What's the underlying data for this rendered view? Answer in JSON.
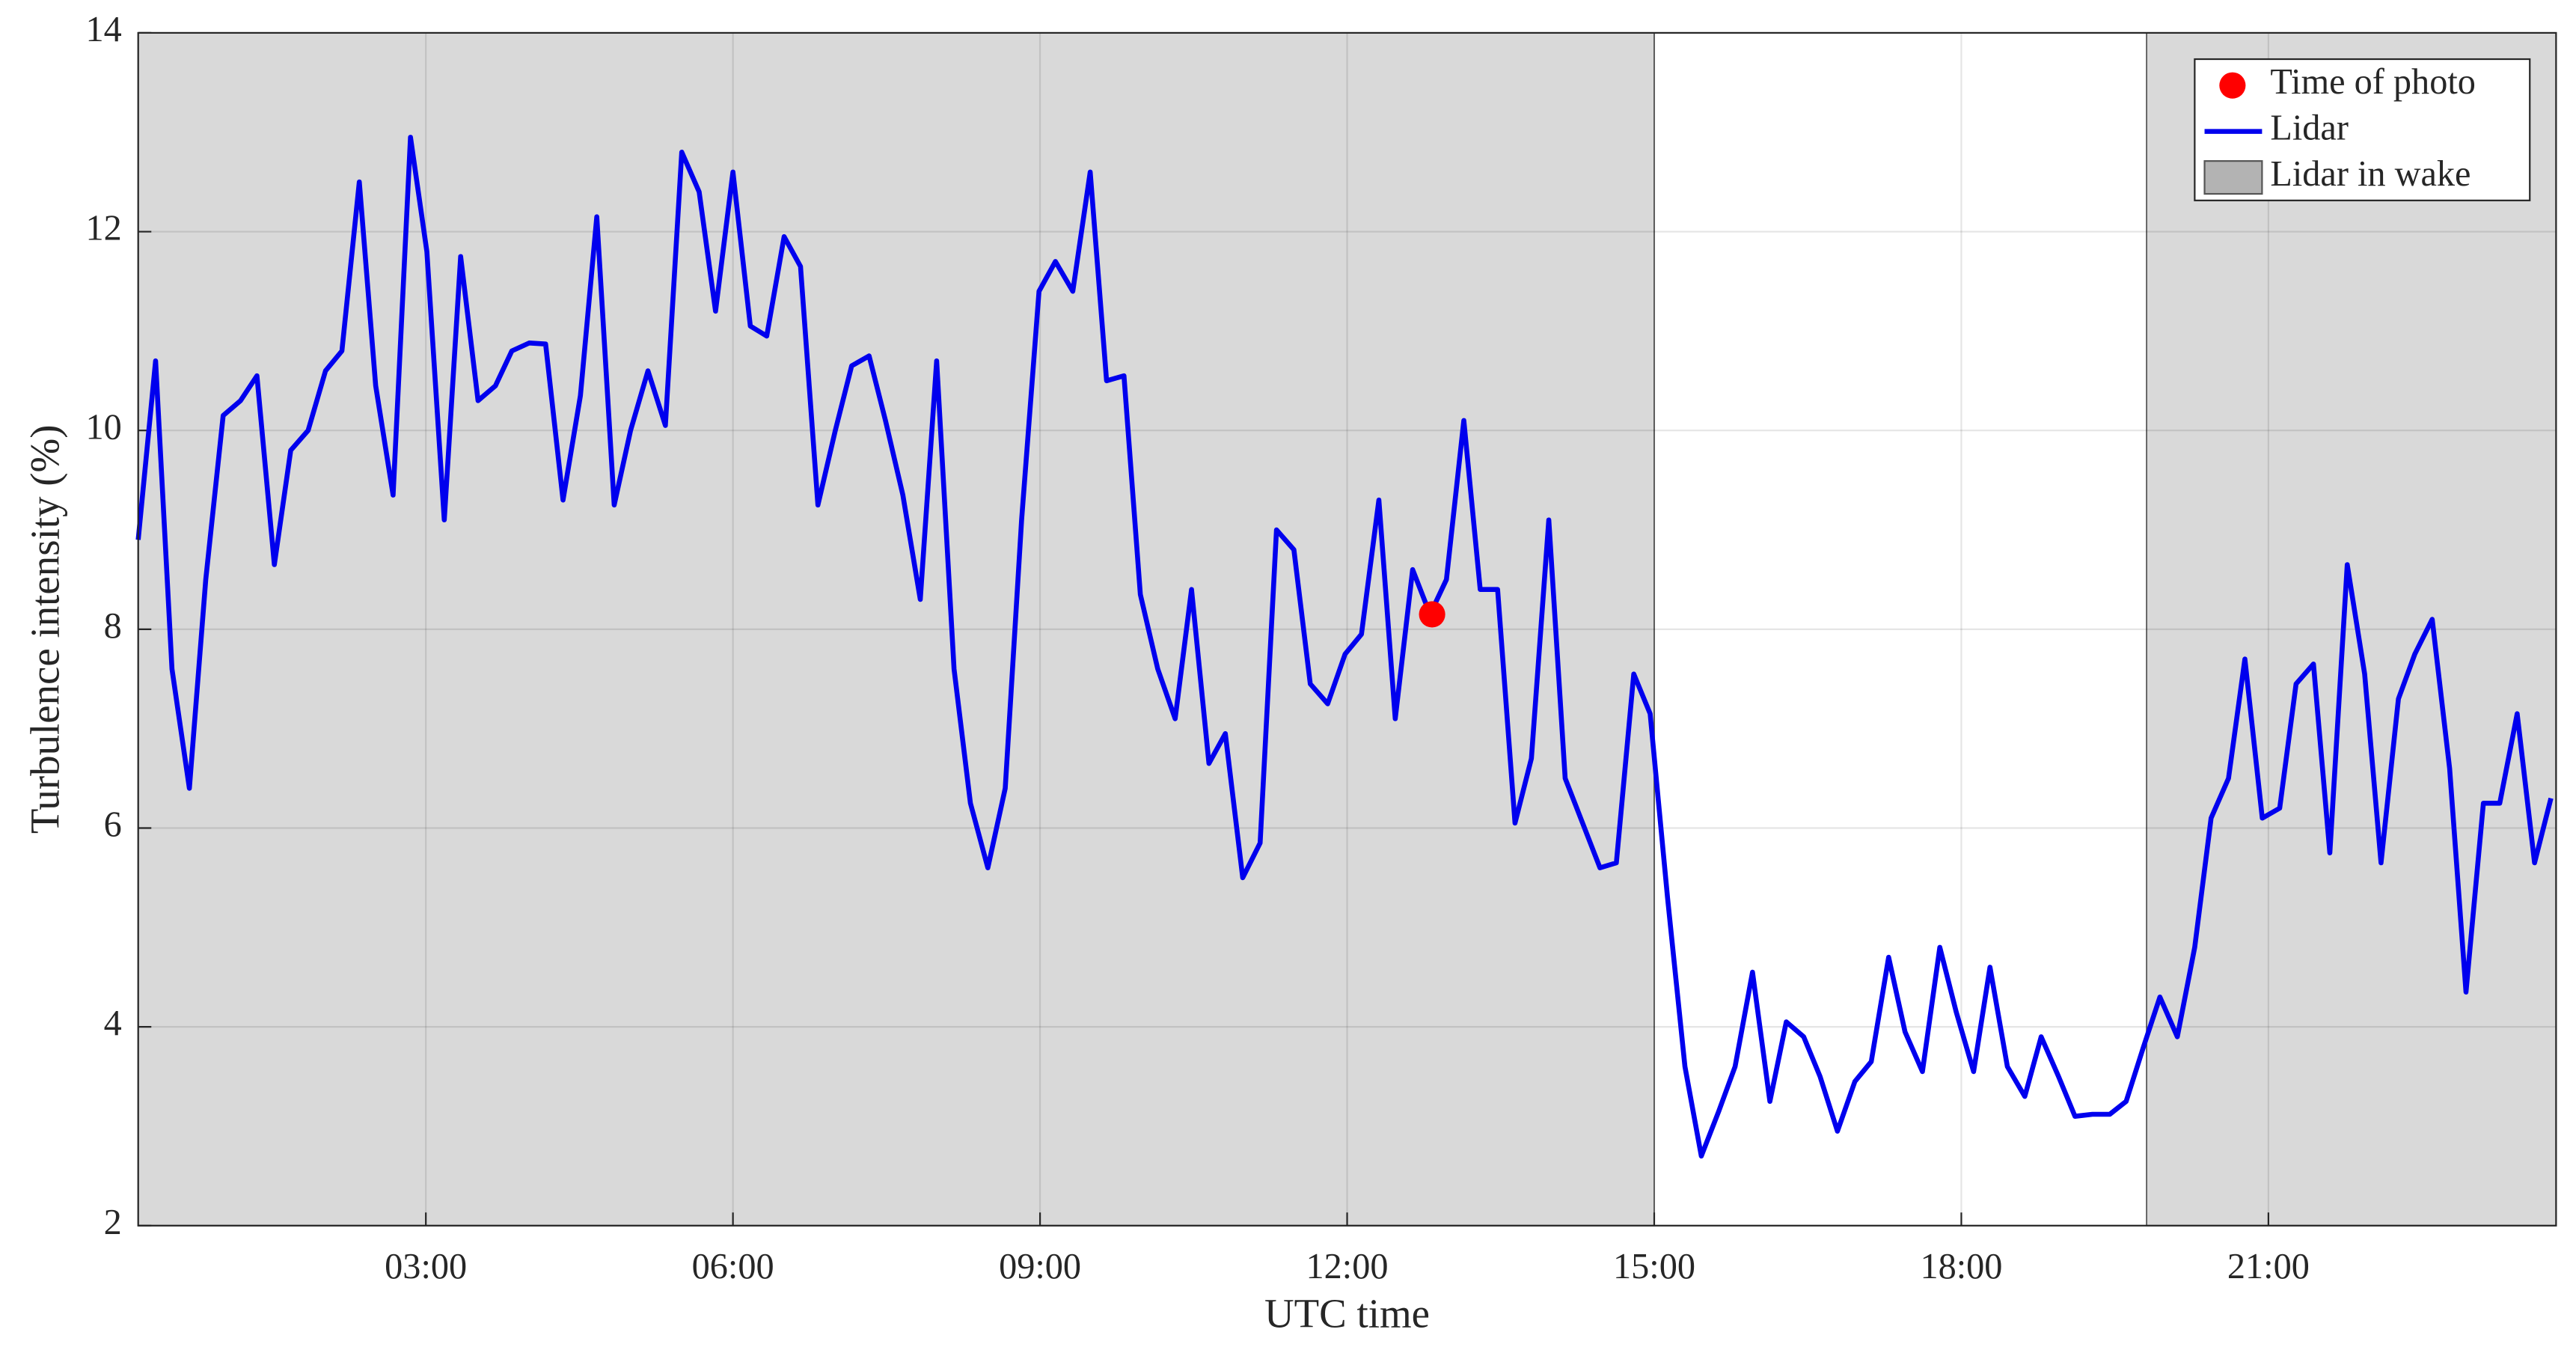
{
  "chart_data": {
    "type": "line",
    "xlabel": "UTC time",
    "ylabel": "Turbulence intensity (%)",
    "xlim": [
      0.19,
      23.81
    ],
    "ylim": [
      2,
      14
    ],
    "xticks": [
      {
        "value": 3,
        "label": "03:00"
      },
      {
        "value": 6,
        "label": "06:00"
      },
      {
        "value": 9,
        "label": "09:00"
      },
      {
        "value": 12,
        "label": "12:00"
      },
      {
        "value": 15,
        "label": "15:00"
      },
      {
        "value": 18,
        "label": "18:00"
      },
      {
        "value": 21,
        "label": "21:00"
      }
    ],
    "yticks": [
      2,
      4,
      6,
      8,
      10,
      12,
      14
    ],
    "grid": true,
    "legend": "upper right",
    "point": {
      "name": "Time of photo",
      "color": "#ff0000",
      "x": 12.83,
      "y": 8.15
    },
    "shaded": {
      "name": "Lidar in wake",
      "color": "#d9d9d9",
      "spans": [
        [
          0.19,
          15.0
        ],
        [
          19.81,
          23.81
        ]
      ]
    },
    "series": [
      {
        "name": "Lidar",
        "color": "#0000ee",
        "x": [
          0.19,
          0.36,
          0.52,
          0.69,
          0.85,
          1.02,
          1.19,
          1.35,
          1.52,
          1.68,
          1.85,
          2.02,
          2.18,
          2.35,
          2.51,
          2.68,
          2.85,
          3.01,
          3.18,
          3.34,
          3.51,
          3.68,
          3.84,
          4.01,
          4.17,
          4.34,
          4.51,
          4.67,
          4.84,
          5.0,
          5.17,
          5.34,
          5.5,
          5.67,
          5.83,
          6.0,
          6.17,
          6.33,
          6.5,
          6.66,
          6.83,
          7.0,
          7.16,
          7.33,
          7.49,
          7.66,
          7.83,
          7.99,
          8.16,
          8.32,
          8.49,
          8.66,
          8.82,
          8.99,
          9.15,
          9.32,
          9.49,
          9.65,
          9.82,
          9.98,
          10.15,
          10.32,
          10.48,
          10.65,
          10.81,
          10.98,
          11.15,
          11.31,
          11.48,
          11.64,
          11.81,
          11.98,
          12.14,
          12.31,
          12.47,
          12.64,
          12.81,
          12.97,
          13.14,
          13.3,
          13.47,
          13.64,
          13.8,
          13.97,
          14.13,
          14.3,
          14.47,
          14.63,
          14.8,
          14.96,
          15.13,
          15.3,
          15.46,
          15.63,
          15.79,
          15.96,
          16.13,
          16.29,
          16.46,
          16.62,
          16.79,
          16.96,
          17.12,
          17.29,
          17.45,
          17.62,
          17.79,
          17.95,
          18.12,
          18.28,
          18.45,
          18.62,
          18.78,
          18.95,
          19.11,
          19.28,
          19.45,
          19.61,
          19.78,
          19.94,
          20.11,
          20.28,
          20.44,
          20.61,
          20.77,
          20.94,
          21.11,
          21.27,
          21.44,
          21.6,
          21.77,
          21.94,
          22.1,
          22.27,
          22.43,
          22.6,
          22.77,
          22.93,
          23.1,
          23.26,
          23.43,
          23.6,
          23.76
        ],
        "values": [
          8.9,
          10.7,
          7.6,
          6.4,
          8.5,
          10.15,
          10.3,
          10.55,
          8.65,
          9.8,
          10.0,
          10.6,
          10.8,
          12.5,
          10.45,
          9.35,
          12.95,
          11.8,
          9.1,
          11.75,
          10.3,
          10.45,
          10.8,
          10.88,
          10.87,
          9.3,
          10.35,
          12.15,
          9.25,
          10.0,
          10.6,
          10.05,
          12.8,
          12.4,
          11.2,
          12.6,
          11.05,
          10.95,
          11.95,
          11.65,
          9.25,
          10.0,
          10.65,
          10.75,
          10.1,
          9.35,
          8.3,
          10.7,
          7.6,
          6.25,
          5.6,
          6.4,
          9.1,
          11.4,
          11.7,
          11.4,
          12.6,
          10.5,
          10.55,
          8.35,
          7.6,
          7.1,
          8.4,
          6.65,
          6.95,
          5.5,
          5.85,
          9.0,
          8.8,
          7.45,
          7.25,
          7.75,
          7.95,
          9.3,
          7.1,
          8.6,
          8.15,
          8.5,
          10.1,
          8.4,
          8.4,
          6.05,
          6.7,
          9.1,
          6.5,
          6.05,
          5.6,
          5.65,
          7.55,
          7.15,
          5.3,
          3.6,
          2.7,
          3.15,
          3.6,
          4.55,
          3.25,
          4.05,
          3.9,
          3.5,
          2.95,
          3.45,
          3.65,
          4.7,
          3.95,
          3.55,
          4.8,
          4.15,
          3.55,
          4.6,
          3.6,
          3.3,
          3.9,
          3.5,
          3.1,
          3.12,
          3.12,
          3.25,
          3.8,
          4.3,
          3.9,
          4.8,
          6.1,
          6.5,
          7.7,
          6.1,
          6.2,
          7.45,
          7.65,
          5.75,
          8.65,
          7.55,
          5.65,
          7.3,
          7.75,
          8.1,
          6.6,
          4.35,
          6.25,
          6.25,
          7.15,
          5.65,
          6.3
        ]
      }
    ]
  }
}
